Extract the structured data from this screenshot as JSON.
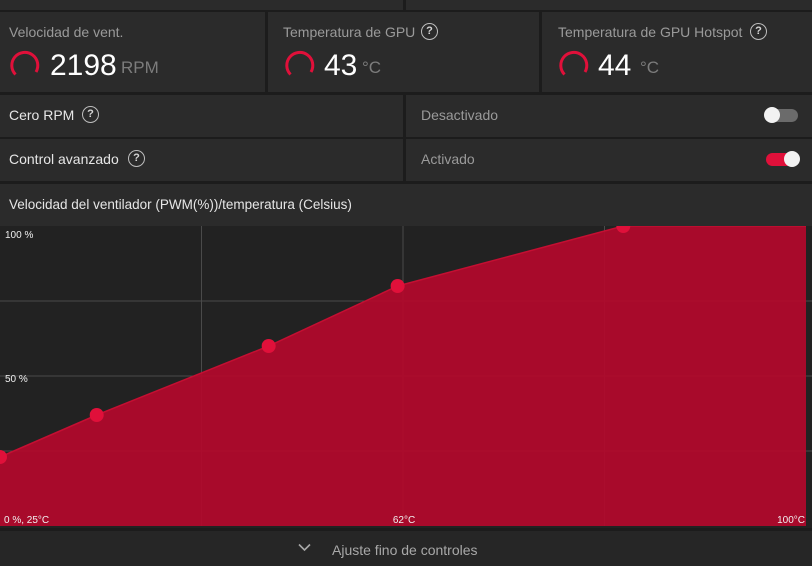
{
  "stats": [
    {
      "label": "Velocidad de vent.",
      "value": "2198",
      "unit": "RPM",
      "has_help": false
    },
    {
      "label": "Temperatura de GPU",
      "value": "43",
      "unit": "°C",
      "has_help": true
    },
    {
      "label": "Temperatura de GPU Hotspot",
      "value": "44",
      "unit": "°C",
      "has_help": true
    }
  ],
  "zero_rpm": {
    "label": "Cero RPM",
    "state": "Desactivado",
    "enabled": false
  },
  "advanced_control": {
    "label": "Control avanzado",
    "state": "Activado",
    "enabled": true
  },
  "chart_title": "Velocidad del ventilador (PWM(%))/temperatura (Celsius)",
  "chart_data": {
    "type": "area",
    "x": [
      25,
      34,
      50,
      62,
      83
    ],
    "y": [
      23,
      37,
      60,
      80,
      100
    ],
    "xlim": [
      25,
      100
    ],
    "ylim": [
      0,
      100
    ],
    "y_tick_labels": [
      "100 %",
      "50 %"
    ],
    "x_tick_labels": [
      "0 %, 25°C",
      "62°C",
      "100°C"
    ],
    "grid": true
  },
  "colors": {
    "accent": "#e0103a",
    "fill": "#b00a2c",
    "bg": "#222222"
  },
  "footer": {
    "label": "Ajuste fino de controles",
    "icon": "chevron-down-icon"
  }
}
